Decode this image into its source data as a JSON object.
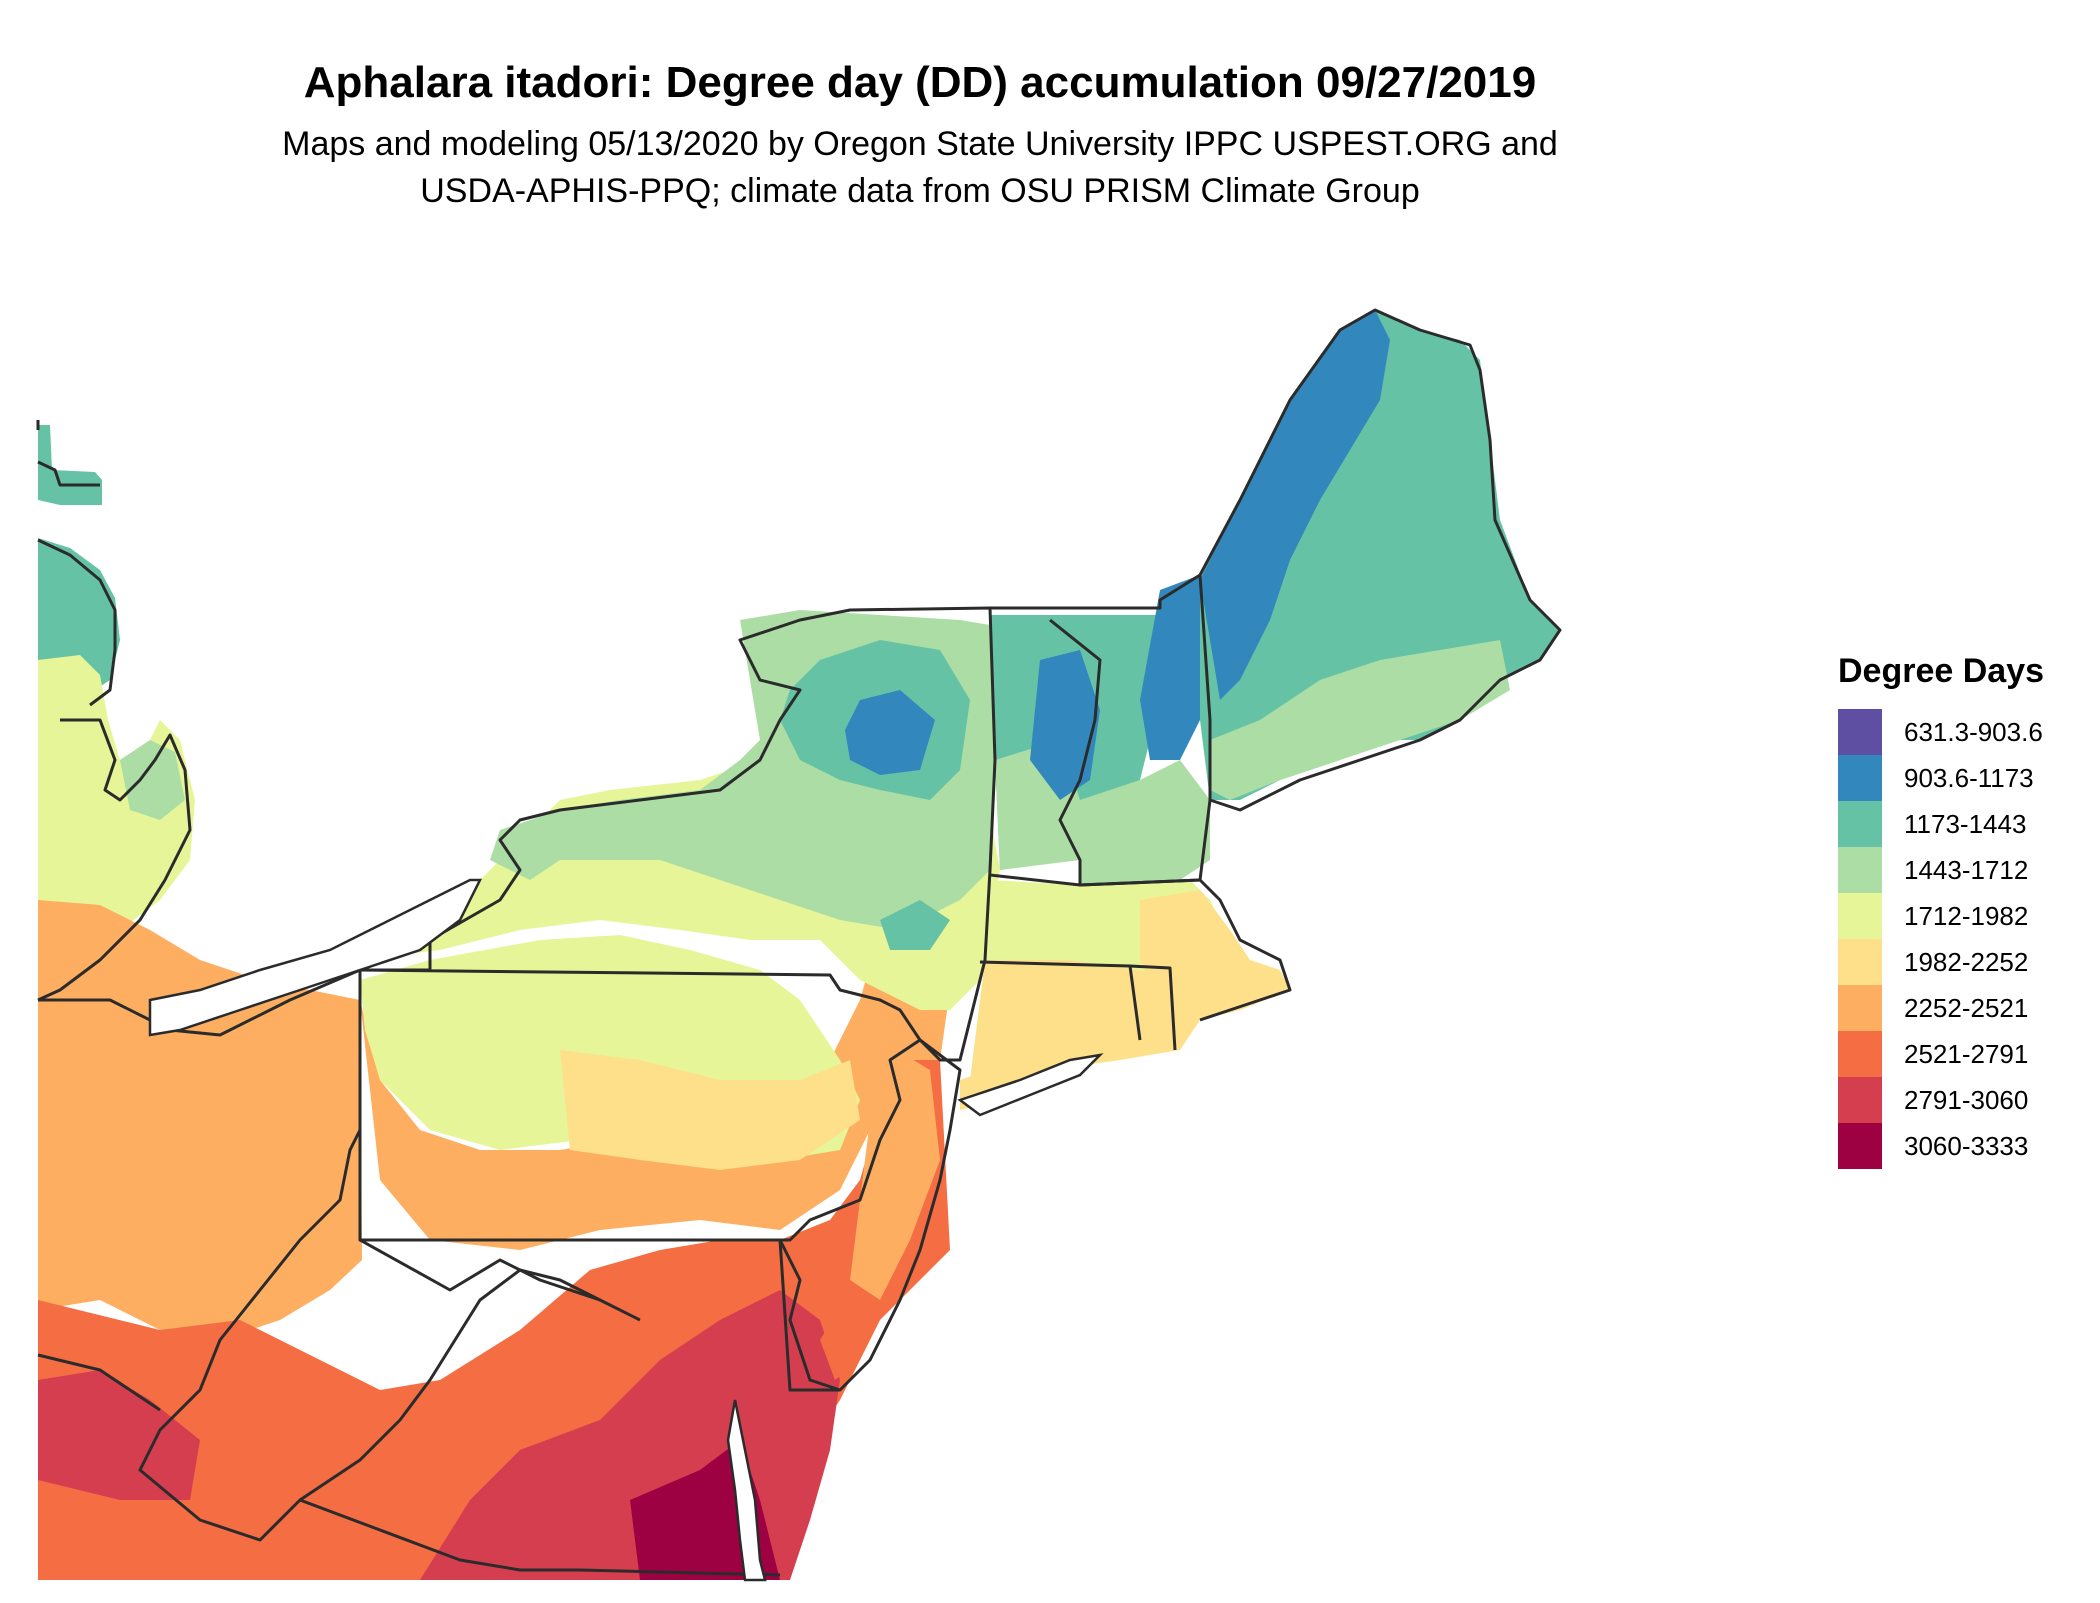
{
  "title": "Aphalara itadori: Degree day (DD) accumulation 09/27/2019",
  "subtitle_line1": "Maps and modeling 05/13/2020 by Oregon State University IPPC USPEST.ORG and",
  "subtitle_line2": "USDA-APHIS-PPQ; climate data from OSU PRISM Climate Group",
  "legend": {
    "title": "Degree Days",
    "items": [
      {
        "label": "631.3-903.6",
        "color": "#5e4fa2"
      },
      {
        "label": "903.6-1173",
        "color": "#3288bd"
      },
      {
        "label": "1173-1443",
        "color": "#66c2a5"
      },
      {
        "label": "1443-1712",
        "color": "#abdda4"
      },
      {
        "label": "1712-1982",
        "color": "#e6f598"
      },
      {
        "label": "1982-2252",
        "color": "#fee08b"
      },
      {
        "label": "2252-2521",
        "color": "#fdae61"
      },
      {
        "label": "2521-2791",
        "color": "#f46d43"
      },
      {
        "label": "2791-3060",
        "color": "#d53e4f"
      },
      {
        "label": "3060-3333",
        "color": "#9e0142"
      }
    ]
  }
}
